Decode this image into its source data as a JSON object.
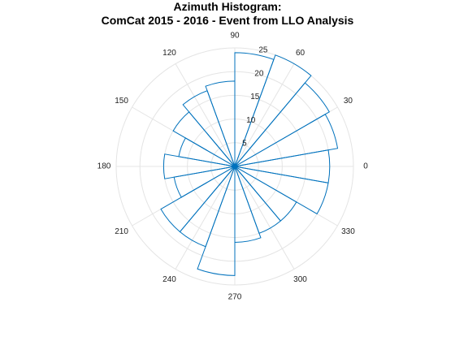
{
  "chart_data": {
    "type": "polar-histogram",
    "title_lines": [
      "Azimuth Histogram:",
      "ComCat 2015 - 2016 - Event from LLO Analysis"
    ],
    "angle_tick_labels": [
      "0",
      "30",
      "60",
      "90",
      "120",
      "150",
      "180",
      "210",
      "240",
      "270",
      "300",
      "330"
    ],
    "angle_ticks_deg": [
      0,
      30,
      60,
      90,
      120,
      150,
      180,
      210,
      240,
      270,
      300,
      330
    ],
    "radial_tick_labels": [
      "5",
      "10",
      "15",
      "20",
      "25"
    ],
    "radial_ticks": [
      5,
      10,
      15,
      20,
      25
    ],
    "rlim": [
      0,
      25
    ],
    "grid": true,
    "bin_width_deg": 20,
    "bins": [
      {
        "start": -10,
        "end": 10,
        "count": 20
      },
      {
        "start": 10,
        "end": 30,
        "count": 22
      },
      {
        "start": 30,
        "end": 50,
        "count": 23
      },
      {
        "start": 50,
        "end": 70,
        "count": 25
      },
      {
        "start": 70,
        "end": 90,
        "count": 24
      },
      {
        "start": 90,
        "end": 110,
        "count": 18
      },
      {
        "start": 110,
        "end": 130,
        "count": 17
      },
      {
        "start": 130,
        "end": 150,
        "count": 15
      },
      {
        "start": 150,
        "end": 170,
        "count": 12
      },
      {
        "start": 170,
        "end": 190,
        "count": 15
      },
      {
        "start": 190,
        "end": 210,
        "count": 13
      },
      {
        "start": 210,
        "end": 230,
        "count": 18
      },
      {
        "start": 230,
        "end": 250,
        "count": 18
      },
      {
        "start": 250,
        "end": 270,
        "count": 23
      },
      {
        "start": 270,
        "end": 290,
        "count": 16
      },
      {
        "start": 290,
        "end": 310,
        "count": 15
      },
      {
        "start": 310,
        "end": 330,
        "count": 15
      },
      {
        "start": 330,
        "end": 350,
        "count": 20
      }
    ],
    "colors": {
      "bars": "#0072BD",
      "grid": "#e4e4e4",
      "text": "#222222"
    }
  }
}
